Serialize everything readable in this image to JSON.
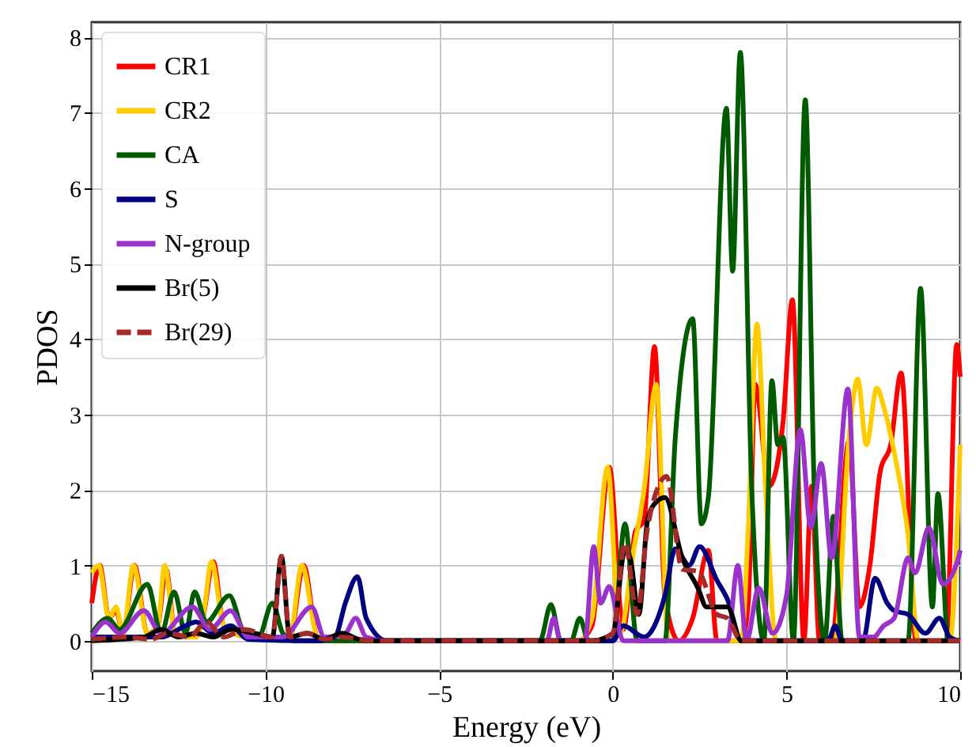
{
  "chart_data": {
    "type": "line",
    "xlabel": "Energy (eV)",
    "ylabel": "PDOS",
    "xlim": [
      -15,
      10
    ],
    "xticks": [
      -15,
      -10,
      -5,
      0,
      5,
      10
    ],
    "ylim": [
      -0.4,
      8.2
    ],
    "yticks": [
      0,
      1,
      2,
      3,
      4,
      5,
      6,
      7,
      8
    ],
    "grid": true,
    "legend": "top left",
    "line_style": "solid",
    "series": [
      {
        "name": "CR1",
        "color": "#ff0000",
        "x": [
          -15,
          -14.77,
          -14.5,
          -14.3,
          -14.1,
          -13.77,
          -13.4,
          -13.1,
          -12.86,
          -12.6,
          -12,
          -11.8,
          -11.5,
          -11.2,
          -10.5,
          -9.3,
          -8.9,
          -8.5,
          -8,
          -3,
          -1,
          -0.6,
          -0.1,
          0.3,
          0.65,
          0.9,
          1.2,
          1.5,
          1.9,
          2.3,
          2.75,
          3.0,
          3.7,
          3.9,
          4.1,
          4.5,
          4.9,
          5.17,
          5.5,
          5.72,
          5.95,
          6.3,
          6.8,
          7.1,
          7.4,
          7.7,
          8.0,
          8.3,
          8.73,
          9.6,
          9.9,
          10
        ],
        "values": [
          0.5,
          1.0,
          0.3,
          0.4,
          0.1,
          1.0,
          0.1,
          0.2,
          0.95,
          0.1,
          0.05,
          0.3,
          1.05,
          0.2,
          0.05,
          0.05,
          1.0,
          0.05,
          0,
          0,
          0,
          0.2,
          2.3,
          0.15,
          1.45,
          1.6,
          3.9,
          0.6,
          0,
          0.3,
          1.2,
          0,
          0,
          0.5,
          3.4,
          2.05,
          2.9,
          4.52,
          0,
          2.05,
          0,
          0,
          2.65,
          0.45,
          1.0,
          2.25,
          2.6,
          3.55,
          0,
          0,
          3.93,
          3.5
        ]
      },
      {
        "name": "CR2",
        "color": "#ffcc00",
        "x": [
          -15,
          -14.8,
          -14.5,
          -14.3,
          -14.1,
          -13.8,
          -13.4,
          -13.1,
          -12.9,
          -12.6,
          -12,
          -11.8,
          -11.55,
          -11.2,
          -10.5,
          -9.3,
          -8.95,
          -8.5,
          -8,
          -3,
          -1,
          -0.6,
          -0.15,
          0.2,
          0.6,
          0.9,
          1.25,
          1.6,
          3.7,
          3.9,
          4.15,
          4.4,
          4.7,
          5.0,
          5.3,
          6.4,
          6.8,
          7.05,
          7.3,
          7.6,
          7.8,
          8.1,
          8.5,
          8.8,
          9.7,
          10
        ],
        "values": [
          0.9,
          1.0,
          0.3,
          0.45,
          0.1,
          1.0,
          0.1,
          0.2,
          1.0,
          0.1,
          0.05,
          0.3,
          1.05,
          0.2,
          0.05,
          0.05,
          1.0,
          0.05,
          0,
          0,
          0,
          0.3,
          2.3,
          0.1,
          1.2,
          2.0,
          3.4,
          0,
          0,
          1.5,
          4.2,
          2.0,
          0,
          0,
          0,
          0,
          2.7,
          3.47,
          2.6,
          3.35,
          3.1,
          2.5,
          1.4,
          0,
          0,
          2.6
        ]
      },
      {
        "name": "CA",
        "color": "#005a00",
        "x": [
          -15,
          -14.54,
          -14.2,
          -13.4,
          -13.0,
          -12.63,
          -12.3,
          -12.04,
          -11.7,
          -11.04,
          -10.6,
          -10.2,
          -9.8,
          -9.5,
          -9.2,
          -8.5,
          -3,
          -2.1,
          -1.78,
          -1.5,
          -1.2,
          -0.95,
          -0.7,
          0,
          0.35,
          0.7,
          1.0,
          1.5,
          1.8,
          2.3,
          2.55,
          2.75,
          3.27,
          3.45,
          3.67,
          4.0,
          4.35,
          4.58,
          4.75,
          4.9,
          5.2,
          5.54,
          5.8,
          6.1,
          6.35,
          6.6,
          8.5,
          8.86,
          9.2,
          9.36,
          9.66,
          10
        ],
        "values": [
          0.1,
          0.3,
          0.15,
          0.75,
          0.1,
          0.65,
          0.1,
          0.65,
          0.25,
          0.6,
          0.1,
          0.05,
          0.5,
          0.1,
          0,
          0,
          0,
          0,
          0.48,
          0,
          0,
          0.3,
          0,
          0,
          1.55,
          0,
          0,
          0,
          2.7,
          4.27,
          1.55,
          1.9,
          7.06,
          4.9,
          7.8,
          2.0,
          0,
          3.45,
          2.6,
          2.7,
          0,
          7.17,
          2.0,
          0,
          1.65,
          0,
          0,
          4.67,
          0.45,
          1.95,
          0,
          0
        ]
      },
      {
        "name": "S",
        "color": "#000080",
        "x": [
          -15,
          -13,
          -12.3,
          -12,
          -11.5,
          -11,
          -10.5,
          -8.5,
          -8.0,
          -7.7,
          -7.35,
          -7.1,
          -6.5,
          -3,
          0,
          0.3,
          0.9,
          1.2,
          1.5,
          1.8,
          2.2,
          2.5,
          3.0,
          3.3,
          3.7,
          6.2,
          6.4,
          6.6,
          7.2,
          7.55,
          7.9,
          8.1,
          8.5,
          9.0,
          9.4,
          9.7,
          10
        ],
        "values": [
          0.05,
          0.05,
          0.2,
          0.25,
          0.1,
          0.2,
          0.02,
          0,
          0.05,
          0.5,
          0.85,
          0.3,
          0,
          0,
          0,
          0.2,
          0.05,
          0.2,
          0.6,
          1.22,
          1.0,
          1.25,
          0.8,
          0.55,
          0,
          0,
          0.2,
          0,
          0,
          0.83,
          0.5,
          0.4,
          0.35,
          0.1,
          0.3,
          0.05,
          0
        ]
      },
      {
        "name": "N-group",
        "color": "#9933cc",
        "x": [
          -15,
          -14.6,
          -14.2,
          -13.5,
          -13.0,
          -12.1,
          -11.6,
          -11.0,
          -10.5,
          -9.5,
          -8.67,
          -8.3,
          -7.7,
          -7.4,
          -7.1,
          -6.5,
          -3,
          -1.9,
          -1.7,
          -1.5,
          -0.8,
          -0.55,
          -0.35,
          -0.1,
          0.3,
          3.3,
          3.6,
          3.85,
          4.2,
          4.6,
          5.0,
          5.4,
          5.7,
          6.0,
          6.3,
          6.77,
          7.1,
          7.5,
          7.8,
          8.1,
          8.5,
          8.7,
          9.1,
          9.5,
          9.95,
          10
        ],
        "values": [
          0.05,
          0.25,
          0.1,
          0.4,
          0.1,
          0.45,
          0.15,
          0.4,
          0.05,
          0.05,
          0.45,
          0.05,
          0.1,
          0.3,
          0.05,
          0,
          0,
          0,
          0.3,
          0,
          0,
          1.25,
          0.5,
          0.72,
          0,
          0,
          1.0,
          0,
          0.7,
          0.1,
          0.6,
          2.8,
          1.5,
          2.35,
          1.1,
          3.34,
          0.05,
          0.05,
          0.2,
          0.3,
          1.1,
          0.9,
          1.5,
          0.75,
          1.1,
          1.2
        ]
      },
      {
        "name": "Br(5)",
        "color": "#000000",
        "x": [
          -15,
          -13.5,
          -13,
          -12.5,
          -12,
          -11.5,
          -11,
          -10.3,
          -9.8,
          -9.54,
          -9.3,
          -8.8,
          -8.3,
          -7.8,
          -7.3,
          -7,
          -3,
          -0.6,
          0,
          0.35,
          0.5,
          0.75,
          1.0,
          1.27,
          1.5,
          2.0,
          2.45,
          2.7,
          3.3,
          3.7,
          5,
          10
        ],
        "values": [
          0,
          0.05,
          0.15,
          0.05,
          0.1,
          0.05,
          0.15,
          0.1,
          0.05,
          1.12,
          0.05,
          0.1,
          0.02,
          0.1,
          0.02,
          0,
          0,
          0,
          0.1,
          1.2,
          1.1,
          0.35,
          1.6,
          1.85,
          1.9,
          1.1,
          0.7,
          0.45,
          0.45,
          0,
          0,
          0
        ]
      },
      {
        "name": "Br(29)",
        "color": "#a52a2a",
        "line_style": "dashed",
        "x": [
          -15,
          -14,
          -13.3,
          -12.8,
          -12.2,
          -11.7,
          -11.2,
          -10.6,
          -9.8,
          -9.54,
          -9.3,
          -8.8,
          -8.3,
          -7.8,
          -7.3,
          -7,
          -3,
          -0.6,
          0,
          0.35,
          0.7,
          1.0,
          1.55,
          2.0,
          2.45,
          3.0,
          3.3,
          3.7,
          5,
          10
        ],
        "values": [
          0.02,
          0.05,
          0.02,
          0.1,
          0.05,
          0.25,
          0.05,
          0.15,
          0.05,
          1.12,
          0.05,
          0.1,
          0.02,
          0.05,
          0.02,
          0,
          0,
          0,
          0.1,
          1.3,
          0.35,
          1.5,
          2.18,
          0.95,
          0.92,
          0.35,
          0.3,
          0,
          0,
          0
        ]
      }
    ]
  }
}
